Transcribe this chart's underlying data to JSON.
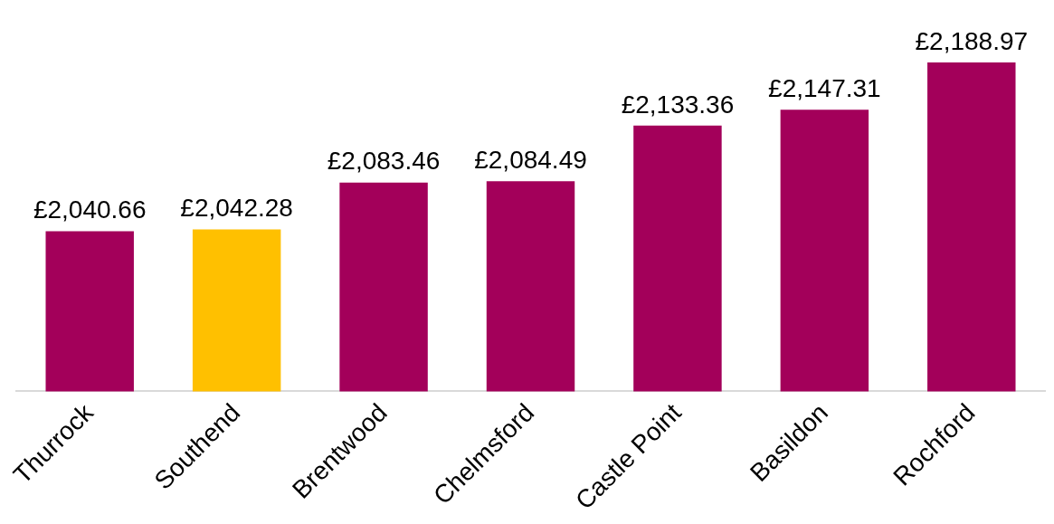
{
  "chart_data": {
    "type": "bar",
    "categories": [
      "Thurrock",
      "Southend",
      "Brentwood",
      "Chelmsford",
      "Castle Point",
      "Basildon",
      "Rochford"
    ],
    "values": [
      2040.66,
      2042.28,
      2083.46,
      2084.49,
      2133.36,
      2147.31,
      2188.97
    ],
    "colors": [
      "#a3005a",
      "#ffc000",
      "#a3005a",
      "#a3005a",
      "#a3005a",
      "#a3005a",
      "#a3005a"
    ],
    "value_labels": [
      "£2,040.66",
      "£2,042.28",
      "£2,083.46",
      "£2,084.49",
      "£2,133.36",
      "£2,147.31",
      "£2,188.97"
    ],
    "tick_labels": "x",
    "grid": false,
    "legend": false
  }
}
